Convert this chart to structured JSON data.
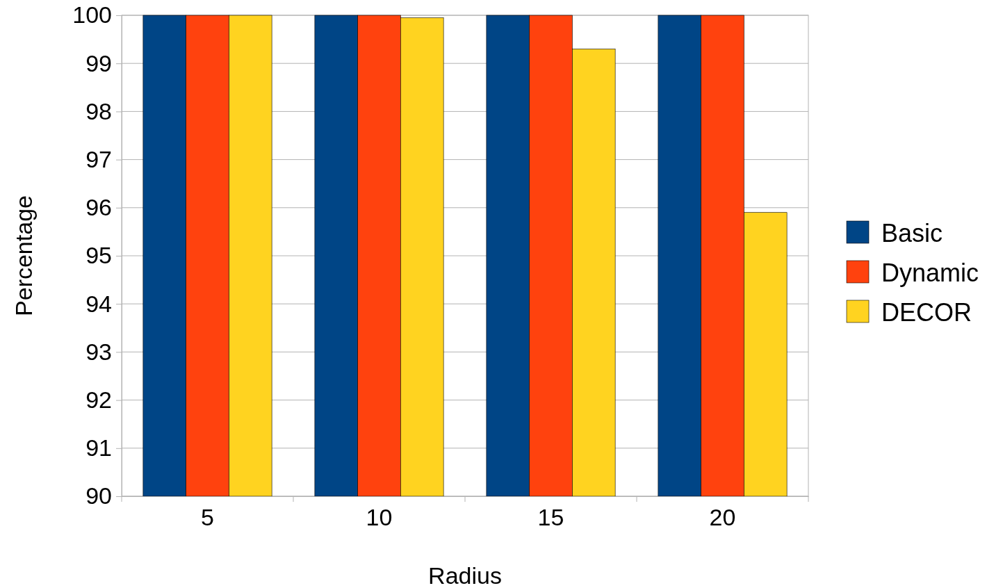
{
  "chart_data": {
    "type": "bar",
    "xlabel": "Radius",
    "ylabel": "Percentage",
    "categories": [
      "5",
      "10",
      "15",
      "20"
    ],
    "series": [
      {
        "name": "Basic",
        "color": "#004586",
        "values": [
          100,
          100,
          100,
          100
        ]
      },
      {
        "name": "Dynamic",
        "color": "#ff420e",
        "values": [
          100,
          100,
          100,
          100
        ]
      },
      {
        "name": "DECOR",
        "color": "#ffd320",
        "values": [
          100,
          99.95,
          99.3,
          95.9
        ]
      }
    ],
    "ylim": [
      90,
      100
    ],
    "yticks": [
      90,
      91,
      92,
      93,
      94,
      95,
      96,
      97,
      98,
      99,
      100
    ],
    "grid": "y",
    "legend": "right"
  }
}
